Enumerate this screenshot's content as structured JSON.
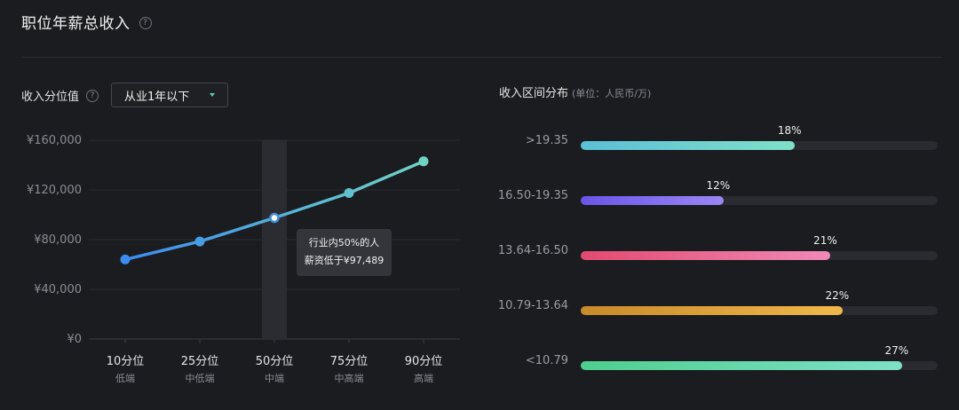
{
  "header": {
    "title": "职位年薪总收入",
    "help": "?"
  },
  "left": {
    "label": "收入分位值",
    "help": "?",
    "select": {
      "value": "从业1年以下"
    },
    "tooltip": {
      "line1": "行业内50%的人",
      "line2": "薪资低于¥97,489"
    }
  },
  "right": {
    "title": "收入区间分布",
    "unit": "(单位：人民币/万)"
  },
  "chart_data": [
    {
      "type": "line",
      "categories": [
        "10分位",
        "25分位",
        "50分位",
        "75分位",
        "90分位"
      ],
      "sub_labels": [
        "低端",
        "中低端",
        "中端",
        "中高端",
        "高端"
      ],
      "values": [
        64000,
        78500,
        97489,
        117500,
        143000
      ],
      "y_ticks": [
        "¥0",
        "¥40,000",
        "¥80,000",
        "¥120,000",
        "¥160,000"
      ],
      "ylim": [
        0,
        160000
      ],
      "highlight_index": 2,
      "colors": {
        "start": "#3b8cf0",
        "end": "#6fd3c4"
      }
    },
    {
      "type": "bar",
      "orientation": "horizontal",
      "categories": [
        ">19.35",
        "16.50-19.35",
        "13.64-16.50",
        "10.79-13.64",
        "<10.79"
      ],
      "values": [
        18,
        12,
        21,
        22,
        27
      ],
      "value_labels": [
        "18%",
        "12%",
        "21%",
        "22%",
        "27%"
      ],
      "xlim": [
        0,
        30
      ],
      "colors": [
        [
          "#5bbfd6",
          "#7fe0c8"
        ],
        [
          "#6a55e8",
          "#9b86f5"
        ],
        [
          "#e24a70",
          "#f08ab7"
        ],
        [
          "#c98a2a",
          "#f0b84a"
        ],
        [
          "#4ecf8e",
          "#7ee0c8"
        ]
      ]
    }
  ]
}
